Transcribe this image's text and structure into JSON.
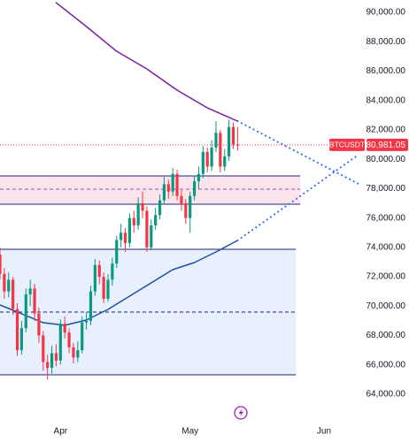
{
  "chart_data": {
    "type": "candlestick",
    "up_color": "#089981",
    "down_color": "#f23645",
    "x": [
      0,
      1,
      2,
      3,
      4,
      5,
      6,
      7,
      8,
      9,
      10,
      11,
      12,
      13,
      14,
      15,
      16,
      17,
      18,
      19,
      20,
      21,
      22,
      23,
      24,
      25,
      26,
      27,
      28,
      29,
      30,
      31,
      32,
      33,
      34,
      35,
      36,
      37,
      38,
      39,
      40,
      41,
      42,
      43,
      44,
      45,
      46,
      47,
      48,
      49,
      50,
      51,
      52,
      53,
      54,
      55
    ],
    "open": [
      73500,
      72200,
      71000,
      71800,
      69800,
      67000,
      68500,
      70800,
      71200,
      69500,
      68000,
      66200,
      65800,
      66800,
      66300,
      68800,
      68200,
      67200,
      66500,
      67000,
      68900,
      69000,
      71000,
      72800,
      72000,
      70500,
      71800,
      72900,
      74500,
      75000,
      74300,
      76000,
      75500,
      77000,
      76500,
      74000,
      75500,
      76200,
      77200,
      78300,
      77800,
      79000,
      77500,
      77000,
      76000,
      77500,
      78500,
      79000,
      80500,
      79500,
      80800,
      81800,
      79500,
      80200,
      82200,
      81000
    ],
    "high": [
      74000,
      72600,
      72300,
      72000,
      70200,
      69000,
      71200,
      71800,
      71500,
      69900,
      68300,
      66700,
      67300,
      67400,
      69100,
      69300,
      68500,
      67500,
      67600,
      69300,
      69600,
      71400,
      73200,
      73100,
      72300,
      72200,
      73300,
      74800,
      75600,
      75300,
      76300,
      76500,
      77400,
      77800,
      76800,
      75900,
      76700,
      77600,
      78800,
      78600,
      79400,
      79300,
      77900,
      77300,
      77800,
      78900,
      79500,
      80900,
      80800,
      81300,
      82600,
      82000,
      80700,
      82700,
      82500,
      82200
    ],
    "low": [
      71800,
      70500,
      70600,
      69400,
      66600,
      66700,
      68200,
      70000,
      69000,
      67500,
      65600,
      65000,
      65400,
      65900,
      66000,
      67800,
      66800,
      66100,
      66200,
      66800,
      68400,
      68700,
      70700,
      71500,
      70200,
      70300,
      71400,
      72600,
      74000,
      73700,
      74000,
      75000,
      75200,
      76000,
      73700,
      73800,
      75200,
      75900,
      76900,
      77300,
      77500,
      77200,
      76500,
      75600,
      75000,
      77200,
      78000,
      78700,
      79100,
      79200,
      80500,
      79100,
      79200,
      79900,
      80700,
      80600
    ],
    "close": [
      72200,
      71000,
      71800,
      69800,
      67000,
      68500,
      70800,
      71200,
      69500,
      68000,
      66200,
      65800,
      66800,
      66300,
      68800,
      68200,
      67200,
      66500,
      67000,
      68900,
      69000,
      71000,
      72800,
      72000,
      70500,
      71800,
      72900,
      74500,
      75000,
      74300,
      76000,
      75500,
      77000,
      76500,
      74000,
      75500,
      76200,
      77200,
      78300,
      77800,
      79000,
      77500,
      77000,
      76000,
      77500,
      78500,
      79000,
      80500,
      79500,
      80800,
      81800,
      79500,
      80200,
      82200,
      81000,
      80981.05
    ],
    "xlim": [
      0,
      83
    ],
    "ylim": [
      62556,
      90843
    ],
    "xticks": [
      {
        "value": 14,
        "label": "Apr"
      },
      {
        "value": 44,
        "label": "May"
      },
      {
        "value": 75,
        "label": "Jun"
      }
    ],
    "yticks": [
      {
        "value": 64000,
        "label": "64,000.00"
      },
      {
        "value": 66000,
        "label": "66,000.00"
      },
      {
        "value": 68000,
        "label": "68,000.00"
      },
      {
        "value": 70000,
        "label": "70,000.00"
      },
      {
        "value": 72000,
        "label": "72,000.00"
      },
      {
        "value": 74000,
        "label": "74,000.00"
      },
      {
        "value": 76000,
        "label": "76,000.00"
      },
      {
        "value": 78000,
        "label": "78,000.00"
      },
      {
        "value": 80000,
        "label": "80,000.00"
      },
      {
        "value": 82000,
        "label": "82,000.00"
      },
      {
        "value": 84000,
        "label": "84,000.00"
      },
      {
        "value": 86000,
        "label": "86,000.00"
      },
      {
        "value": 88000,
        "label": "88,000.00"
      },
      {
        "value": 90000,
        "label": "90,000.00"
      }
    ],
    "zones": [
      {
        "top": 78866,
        "bottom": 76940,
        "mid": 77963,
        "x_end": 69.5,
        "fill": "#fce4ec",
        "border": "#1a237e",
        "mid_color": "#8e5aa8"
      },
      {
        "top": 73870,
        "bottom": 65324,
        "mid": 69597,
        "x_end": 68.5,
        "fill": "#e8f0fe",
        "border": "#1a237e",
        "mid_color": "#1a237e"
      }
    ],
    "lines": [
      {
        "color": "#7b1fa2",
        "style": "solid",
        "x": [
          13,
          20,
          27,
          34,
          41,
          48,
          55
        ],
        "values": [
          90660,
          89037,
          87352,
          86148,
          84704,
          83500,
          82597
        ]
      },
      {
        "color": "#2962ff",
        "style": "dotted",
        "x": [
          55,
          83
        ],
        "values": [
          82597,
          78324
        ]
      },
      {
        "color": "#1e4fa8",
        "style": "solid",
        "x": [
          0,
          5,
          10,
          15,
          20,
          25,
          30,
          35,
          40,
          45,
          50,
          55
        ],
        "values": [
          70079,
          69478,
          68875,
          68694,
          69056,
          69778,
          70681,
          71583,
          72486,
          72968,
          73690,
          74472
        ]
      },
      {
        "color": "#2962ff",
        "style": "dotted",
        "x": [
          55,
          83
        ],
        "values": [
          74472,
          80310
        ]
      }
    ],
    "price_line": {
      "symbol": "BTCUSDT",
      "value": 80981.05,
      "label": "80,981.05",
      "color": "#f23645"
    }
  }
}
